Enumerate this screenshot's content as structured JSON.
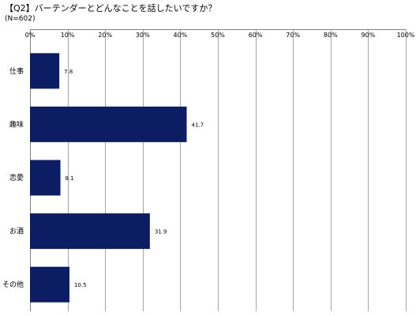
{
  "title": "【Q2】バーテンダーとどんなことを話したいですか？",
  "subtitle": "(N=602)",
  "chart_data": {
    "type": "bar",
    "orientation": "horizontal",
    "categories": [
      "仕事",
      "趣味",
      "恋愛",
      "お酒",
      "その他"
    ],
    "values": [
      7.8,
      41.7,
      8.1,
      31.9,
      10.5
    ],
    "value_labels": [
      "7.8",
      "41.7",
      "8.1",
      "31.9",
      "10.5"
    ],
    "xlim": [
      0,
      100
    ],
    "xticks": [
      0,
      10,
      20,
      30,
      40,
      50,
      60,
      70,
      80,
      90,
      100
    ],
    "xtick_labels": [
      "0%",
      "10%",
      "20%",
      "30%",
      "40%",
      "50%",
      "60%",
      "70%",
      "80%",
      "90%",
      "100%"
    ],
    "axis_position": "top",
    "grid": true,
    "legend": "none",
    "bar_color": "#0c1d63",
    "grid_color": "#a6a6a6"
  }
}
